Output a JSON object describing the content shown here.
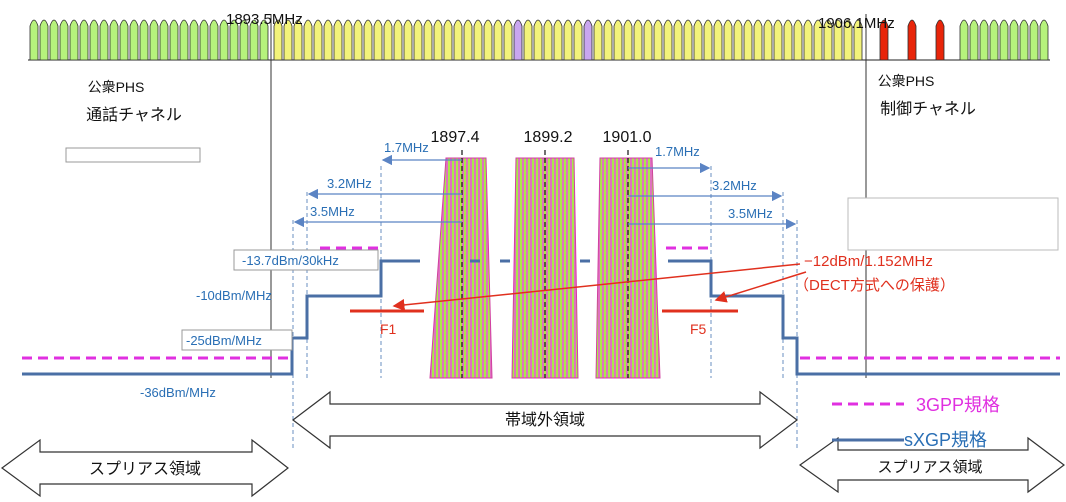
{
  "markers": {
    "freq_left": "1893.5MHz",
    "freq_right": "1906.1MHz",
    "center1": "1897.4",
    "center2": "1899.2",
    "center3": "1901.0"
  },
  "regions": {
    "left_phs_line1": "公衆PHS",
    "left_phs_line2": "通話チャネル",
    "right_phs_line1": "公衆PHS",
    "right_phs_line2": "制御チャネル",
    "out_of_band": "帯域外領域",
    "spurious_left": "スプリアス領域",
    "spurious_right": "スプリアス領域"
  },
  "offsets": {
    "w17_left": "1.7MHz",
    "w32_left": "3.2MHz",
    "w35_left": "3.5MHz",
    "w17_right": "1.7MHz",
    "w32_right": "3.2MHz",
    "w35_right": "3.5MHz"
  },
  "levels": {
    "l137": "-13.7dBm/30kHz",
    "l10": "-10dBm/MHz",
    "l25": "-25dBm/MHz",
    "l36": "-36dBm/MHz"
  },
  "dect": {
    "line1": "−12dBm/1.152MHz",
    "line2": "（DECT方式への保護）",
    "f1": "F1",
    "f5": "F5"
  },
  "legend": {
    "gpp": "3GPP規格",
    "sxgp": "sXGP規格"
  },
  "colors": {
    "green_channel": "#b6f27c",
    "yellow_channel": "#f3f37a",
    "purple_channel": "#c9a6f0",
    "red_channel": "#e8250a",
    "carrier_fill": "#e060b0",
    "carrier_core": "#a8e84a",
    "mask_blue": "#4a6fa5",
    "dash_magenta": "#e030e0",
    "label_blue": "#2a6fb5",
    "dect_red": "#e0301e"
  }
}
